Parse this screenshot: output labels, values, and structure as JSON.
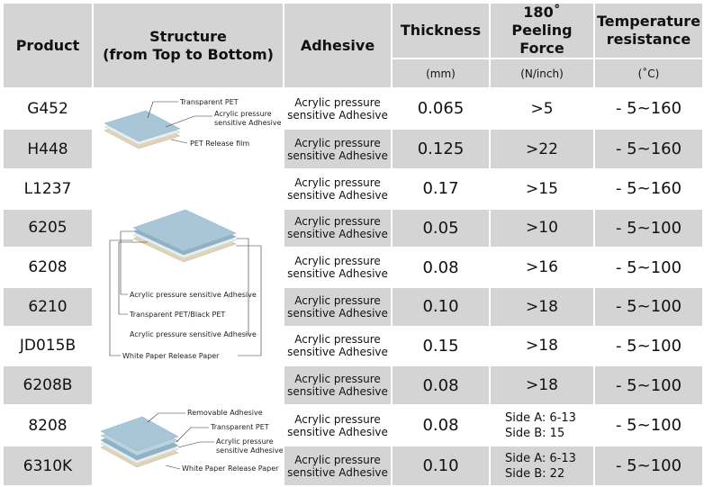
{
  "header": {
    "product": "Product",
    "structure_line1": "Structure",
    "structure_line2": "(from Top to Bottom)",
    "adhesive": "Adhesive",
    "thickness": "Thickness",
    "thickness_unit": "(mm)",
    "peel_line1": "180˚",
    "peel_line2": "Peeling Force",
    "peel_unit": "(N/inch)",
    "temp_line1": "Temperature",
    "temp_line2": "resistance",
    "temp_unit": "(˚C)"
  },
  "structures": {
    "a": {
      "colors": {
        "top": "#a9c6d6",
        "mid": "#e3eef4",
        "bottom": "#e3d2b3"
      },
      "labels": [
        "Transparent PET",
        "Acrylic pressure",
        "sensitive Adhesive",
        "PET Release film"
      ]
    },
    "b": {
      "colors": {
        "top": "#a9c6d6",
        "mid": "#e3eef4",
        "bottom": "#e3d2b3"
      },
      "labels": [
        "Acrylic pressure sensitive Adhesive",
        "Transparent PET/Black PET",
        "Acrylic pressure sensitive Adhesive",
        "White Paper Release Paper"
      ]
    },
    "c": {
      "colors": {
        "top": "#a9c6d6",
        "mid": "#e3eef4",
        "bottom": "#e3d2b3"
      },
      "labels": [
        "Removable Adhesive",
        "Transparent PET",
        "Acrylic pressure",
        "sensitive Adhesive",
        "White Paper Release Paper"
      ]
    }
  },
  "rows": [
    {
      "product": "G452",
      "adh1": "Acrylic pressure",
      "adh2": "sensitive Adhesive",
      "thickness": "0.065",
      "peel": ">5",
      "temp": "- 5~160"
    },
    {
      "product": "H448",
      "adh1": "Acrylic pressure",
      "adh2": "sensitive Adhesive",
      "thickness": "0.125",
      "peel": ">22",
      "temp": "- 5~160"
    },
    {
      "product": "L1237",
      "adh1": "Acrylic pressure",
      "adh2": "sensitive Adhesive",
      "thickness": "0.17",
      "peel": ">15",
      "temp": "- 5~160"
    },
    {
      "product": "6205",
      "adh1": "Acrylic pressure",
      "adh2": "sensitive Adhesive",
      "thickness": "0.05",
      "peel": ">10",
      "temp": "- 5~100"
    },
    {
      "product": "6208",
      "adh1": "Acrylic pressure",
      "adh2": "sensitive Adhesive",
      "thickness": "0.08",
      "peel": ">16",
      "temp": "- 5~100"
    },
    {
      "product": "6210",
      "adh1": "Acrylic pressure",
      "adh2": "sensitive Adhesive",
      "thickness": "0.10",
      "peel": ">18",
      "temp": "- 5~100"
    },
    {
      "product": "JD015B",
      "adh1": "Acrylic pressure",
      "adh2": "sensitive Adhesive",
      "thickness": "0.15",
      "peel": ">18",
      "temp": "- 5~100"
    },
    {
      "product": "6208B",
      "adh1": "Acrylic pressure",
      "adh2": "sensitive Adhesive",
      "thickness": "0.08",
      "peel": ">18",
      "temp": "- 5~100"
    },
    {
      "product": "8208",
      "adh1": "Acrylic pressure",
      "adh2": "sensitive Adhesive",
      "thickness": "0.08",
      "peel_a": "Side A: 6-13",
      "peel_b": "Side B: 15",
      "temp": "- 5~100"
    },
    {
      "product": "6310K",
      "adh1": "Acrylic pressure",
      "adh2": "sensitive Adhesive",
      "thickness": "0.10",
      "peel_a": "Side A: 6-13",
      "peel_b": "Side B: 22",
      "temp": "- 5~100"
    }
  ]
}
